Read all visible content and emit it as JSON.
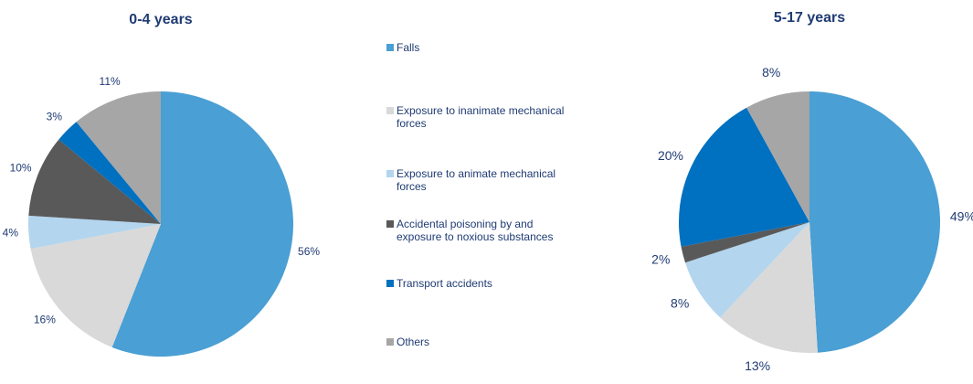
{
  "legend": {
    "entries": [
      "Falls",
      "Exposure to inanimate mechanical forces",
      "Exposure to animate mechanical forces",
      "Accidental poisoning by and exposure to noxious substances",
      "Transport accidents",
      "Others"
    ]
  },
  "chart_data": [
    {
      "type": "pie",
      "title": "0-4 years",
      "values": [
        56,
        16,
        4,
        10,
        3,
        11
      ],
      "value_labels": [
        "56%",
        "16%",
        "4%",
        "10%",
        "3%",
        "11%"
      ],
      "colors": [
        "#4a9fd4",
        "#d9d9d9",
        "#b3d5ee",
        "#595959",
        "#0070c0",
        "#a6a6a6"
      ]
    },
    {
      "type": "pie",
      "title": "5-17 years",
      "values": [
        49,
        13,
        8,
        2,
        20,
        8
      ],
      "value_labels": [
        "49%",
        "13%",
        "8%",
        "2%",
        "20%",
        "8%"
      ],
      "colors": [
        "#4a9fd4",
        "#d9d9d9",
        "#b3d5ee",
        "#595959",
        "#0070c0",
        "#a6a6a6"
      ]
    }
  ]
}
